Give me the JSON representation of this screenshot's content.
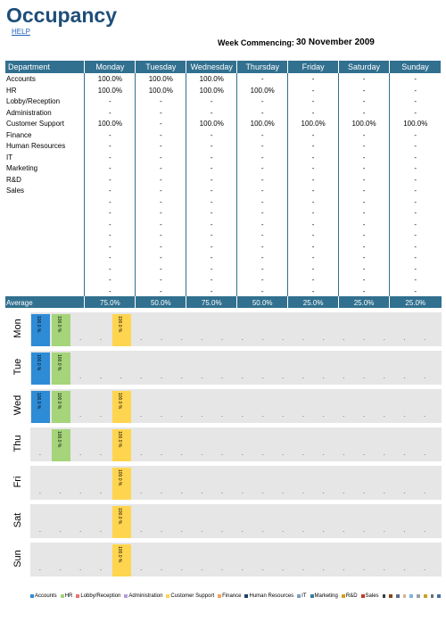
{
  "header": {
    "title": "Occupancy",
    "help": "HELP",
    "week_label": "Week Commencing:",
    "week_value": "30 November 2009"
  },
  "table": {
    "columns": [
      "Department",
      "Monday",
      "Tuesday",
      "Wednesday",
      "Thursday",
      "Friday",
      "Saturday",
      "Sunday"
    ],
    "rows": [
      [
        "Accounts",
        "100.0%",
        "100.0%",
        "100.0%",
        "-",
        "-",
        "-",
        "-"
      ],
      [
        "HR",
        "100.0%",
        "100.0%",
        "100.0%",
        "100.0%",
        "-",
        "-",
        "-"
      ],
      [
        "Lobby/Reception",
        "-",
        "-",
        "-",
        "-",
        "-",
        "-",
        "-"
      ],
      [
        "Administration",
        "-",
        "-",
        "-",
        "-",
        "-",
        "-",
        "-"
      ],
      [
        "Customer Support",
        "100.0%",
        "-",
        "100.0%",
        "100.0%",
        "100.0%",
        "100.0%",
        "100.0%"
      ],
      [
        "Finance",
        "-",
        "-",
        "-",
        "-",
        "-",
        "-",
        "-"
      ],
      [
        "Human Resources",
        "-",
        "-",
        "-",
        "-",
        "-",
        "-",
        "-"
      ],
      [
        "IT",
        "-",
        "-",
        "-",
        "-",
        "-",
        "-",
        "-"
      ],
      [
        "Marketing",
        "-",
        "-",
        "-",
        "-",
        "-",
        "-",
        "-"
      ],
      [
        "R&D",
        "-",
        "-",
        "-",
        "-",
        "-",
        "-",
        "-"
      ],
      [
        "Sales",
        "-",
        "-",
        "-",
        "-",
        "-",
        "-",
        "-"
      ],
      [
        "",
        "-",
        "-",
        "-",
        "-",
        "-",
        "-",
        "-"
      ],
      [
        "",
        "-",
        "-",
        "-",
        "-",
        "-",
        "-",
        "-"
      ],
      [
        "",
        "-",
        "-",
        "-",
        "-",
        "-",
        "-",
        "-"
      ],
      [
        "",
        "-",
        "-",
        "-",
        "-",
        "-",
        "-",
        "-"
      ],
      [
        "",
        "-",
        "-",
        "-",
        "-",
        "-",
        "-",
        "-"
      ],
      [
        "",
        "-",
        "-",
        "-",
        "-",
        "-",
        "-",
        "-"
      ],
      [
        "",
        "-",
        "-",
        "-",
        "-",
        "-",
        "-",
        "-"
      ],
      [
        "",
        "-",
        "-",
        "-",
        "-",
        "-",
        "-",
        "-"
      ],
      [
        "",
        "-",
        "-",
        "-",
        "-",
        "-",
        "-",
        "-"
      ]
    ],
    "average": [
      "Average",
      "75.0%",
      "50.0%",
      "75.0%",
      "50.0%",
      "25.0%",
      "25.0%",
      "25.0%"
    ]
  },
  "chart_data": {
    "type": "bar",
    "ylim": [
      0,
      100
    ],
    "bar_label": "100.0 %",
    "placeholder_label": "-",
    "categories": [
      "Accounts",
      "HR",
      "Lobby/Reception",
      "Administration",
      "Customer Support",
      "Finance",
      "Human Resources",
      "IT",
      "Marketing",
      "R&D",
      "Sales",
      "",
      "",
      "",
      "",
      "",
      "",
      "",
      "",
      ""
    ],
    "colors": [
      "#2e8bd6",
      "#a5d47a",
      "#e57373",
      "#b39ddb",
      "#ffd54f",
      "#f3a35f",
      "#1f3f6e",
      "#7a9cc0",
      "#3b7a9e",
      "#d4a017",
      "#c0392b",
      "#3d3d3d",
      "#8b4513",
      "#5a6b8c",
      "#d9b38c",
      "#7fb2e5",
      "#9aa0a6",
      "#c9a227",
      "#707070",
      "#4a6fa5"
    ],
    "series": [
      {
        "name": "Mon",
        "values": [
          100,
          100,
          0,
          0,
          100,
          0,
          0,
          0,
          0,
          0,
          0,
          0,
          0,
          0,
          0,
          0,
          0,
          0,
          0,
          0
        ]
      },
      {
        "name": "Tue",
        "values": [
          100,
          100,
          0,
          0,
          0,
          0,
          0,
          0,
          0,
          0,
          0,
          0,
          0,
          0,
          0,
          0,
          0,
          0,
          0,
          0
        ]
      },
      {
        "name": "Wed",
        "values": [
          100,
          100,
          0,
          0,
          100,
          0,
          0,
          0,
          0,
          0,
          0,
          0,
          0,
          0,
          0,
          0,
          0,
          0,
          0,
          0
        ]
      },
      {
        "name": "Thu",
        "values": [
          0,
          100,
          0,
          0,
          100,
          0,
          0,
          0,
          0,
          0,
          0,
          0,
          0,
          0,
          0,
          0,
          0,
          0,
          0,
          0
        ]
      },
      {
        "name": "Fri",
        "values": [
          0,
          0,
          0,
          0,
          100,
          0,
          0,
          0,
          0,
          0,
          0,
          0,
          0,
          0,
          0,
          0,
          0,
          0,
          0,
          0
        ]
      },
      {
        "name": "Sat",
        "values": [
          0,
          0,
          0,
          0,
          100,
          0,
          0,
          0,
          0,
          0,
          0,
          0,
          0,
          0,
          0,
          0,
          0,
          0,
          0,
          0
        ]
      },
      {
        "name": "Sun",
        "values": [
          0,
          0,
          0,
          0,
          100,
          0,
          0,
          0,
          0,
          0,
          0,
          0,
          0,
          0,
          0,
          0,
          0,
          0,
          0,
          0
        ]
      }
    ],
    "legend": [
      "Accounts",
      "HR",
      "Lobby/Reception",
      "Administration",
      "Customer Support",
      "Finance",
      "Human Resources",
      "IT",
      "Marketing",
      "R&D",
      "Sales"
    ],
    "legend_placement": "bottom"
  }
}
